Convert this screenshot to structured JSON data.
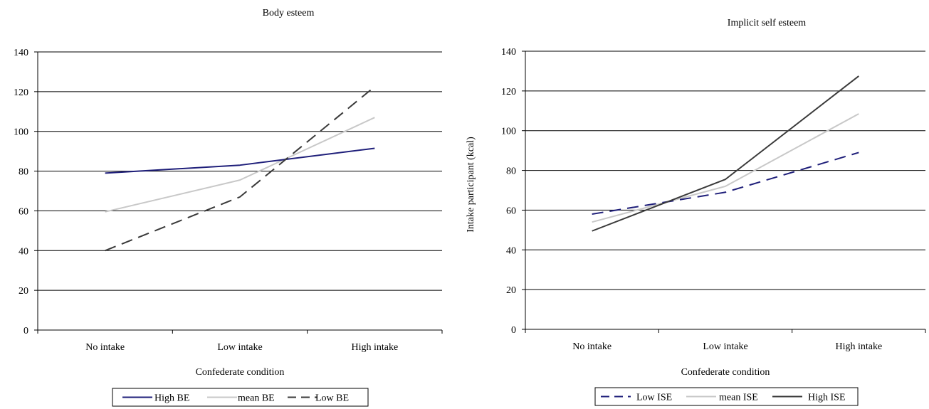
{
  "chart_data": [
    {
      "type": "line",
      "title": "Body esteem",
      "xlabel": "Confederate condition",
      "ylabel": "",
      "categories": [
        "No intake",
        "Low intake",
        "High intake"
      ],
      "ylim": [
        0,
        140
      ],
      "yticks": [
        0,
        20,
        40,
        60,
        80,
        100,
        120,
        140
      ],
      "grid": true,
      "legend_position": "bottom",
      "series": [
        {
          "name": "High BE",
          "values": [
            79,
            83,
            91.5
          ],
          "color": "#1f1f7a",
          "style": "solid"
        },
        {
          "name": "mean BE",
          "values": [
            59.5,
            75.5,
            107
          ],
          "color": "#c8c8c8",
          "style": "solid"
        },
        {
          "name": "Low BE",
          "values": [
            40,
            67,
            122.5
          ],
          "color": "#3a3a3a",
          "style": "dashed"
        }
      ]
    },
    {
      "type": "line",
      "title": "Implicit self esteem",
      "xlabel": "Confederate condition",
      "ylabel": "Intake participant (kcal)",
      "categories": [
        "No intake",
        "Low intake",
        "High intake"
      ],
      "ylim": [
        0,
        140
      ],
      "yticks": [
        0,
        20,
        40,
        60,
        80,
        100,
        120,
        140
      ],
      "grid": true,
      "legend_position": "bottom",
      "series": [
        {
          "name": "Low ISE",
          "values": [
            58,
            69,
            89
          ],
          "color": "#1f1f7a",
          "style": "dashed"
        },
        {
          "name": "mean ISE",
          "values": [
            54,
            72,
            108.5
          ],
          "color": "#c8c8c8",
          "style": "solid"
        },
        {
          "name": "High ISE",
          "values": [
            49.5,
            75.5,
            127.5
          ],
          "color": "#3a3a3a",
          "style": "solid"
        }
      ]
    }
  ]
}
